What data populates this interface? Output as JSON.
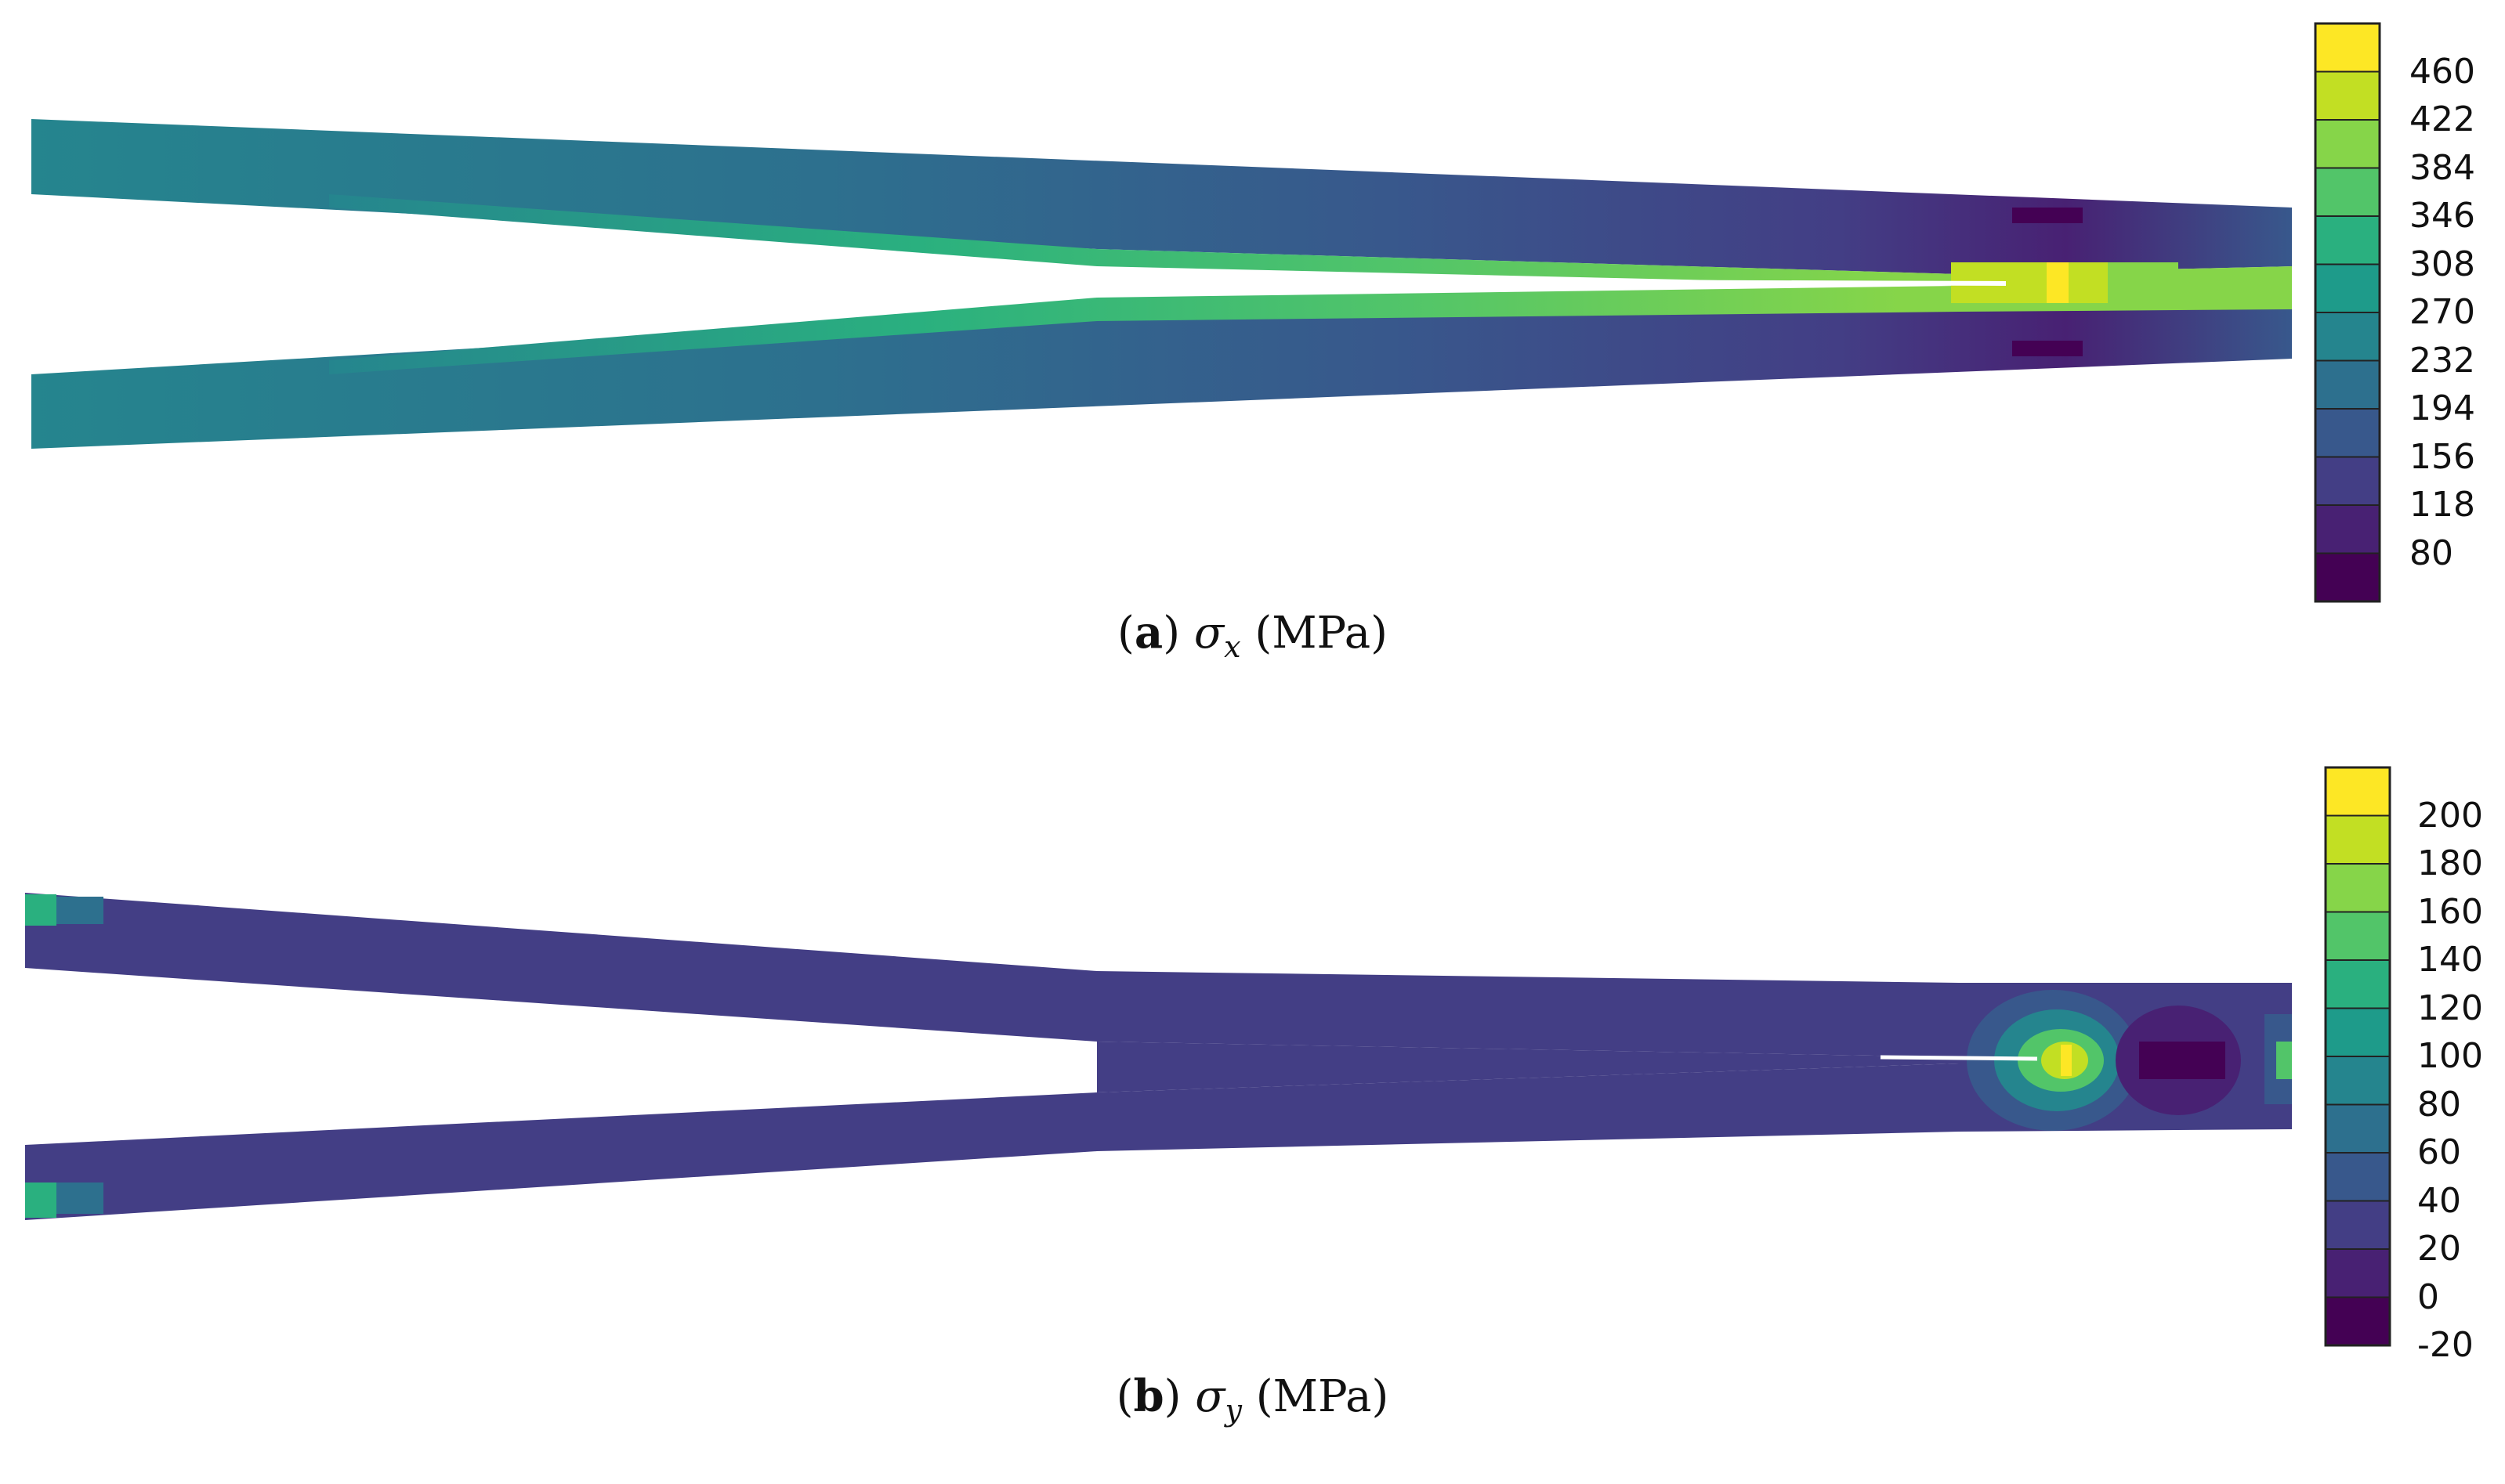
{
  "panels": [
    {
      "id": "a",
      "letter": "a",
      "symbol": "σ",
      "subscript": "x",
      "unit": "(MPa)",
      "colorbar": {
        "ticks": [
          "460",
          "422",
          "384",
          "346",
          "308",
          "270",
          "232",
          "194",
          "156",
          "118",
          "80"
        ],
        "colors": [
          "#fde725",
          "#c2df23",
          "#86d549",
          "#52c569",
          "#2ab07f",
          "#1e9b8a",
          "#25858e",
          "#2d708e",
          "#38588c",
          "#433e85",
          "#482173",
          "#440154"
        ]
      }
    },
    {
      "id": "b",
      "letter": "b",
      "symbol": "σ",
      "subscript": "y",
      "unit": "(MPa)",
      "colorbar": {
        "ticks": [
          "200",
          "180",
          "160",
          "140",
          "120",
          "100",
          "80",
          "60",
          "40",
          "20",
          "0",
          "-20"
        ],
        "colors": [
          "#fde725",
          "#c2df23",
          "#86d549",
          "#52c569",
          "#2ab07f",
          "#1e9b8a",
          "#25858e",
          "#2d708e",
          "#38588c",
          "#433e85",
          "#482173",
          "#440154"
        ]
      }
    }
  ]
}
